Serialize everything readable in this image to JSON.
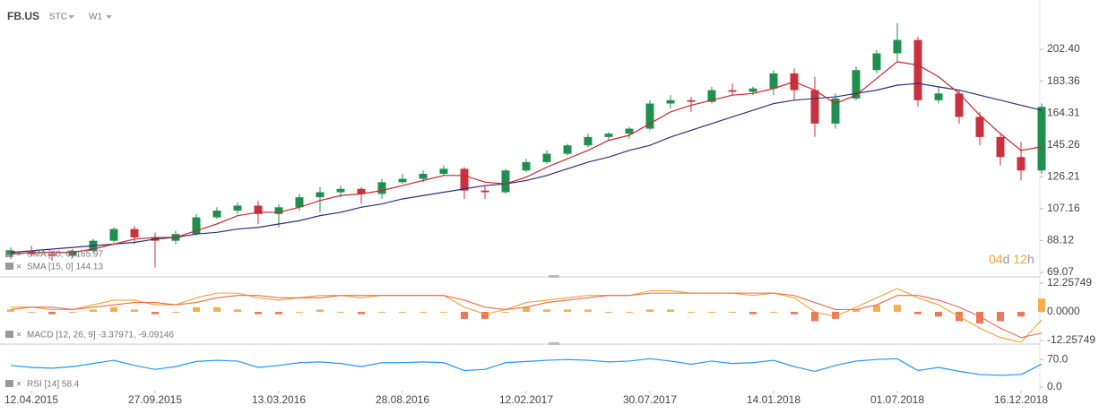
{
  "header": {
    "symbol": "FB.US",
    "instrument_type": "STC",
    "interval": "W1"
  },
  "countdown": [
    {
      "text": "04",
      "color": "#f5a030"
    },
    {
      "text": "d",
      "color": "#9a9a9a"
    },
    {
      "text": "12",
      "color": "#f5a030"
    },
    {
      "text": "h",
      "color": "#9a9a9a"
    }
  ],
  "chart_data": [
    {
      "type": "candlestick",
      "categories": [
        null,
        "12.04.2015",
        null,
        null,
        null,
        null,
        null,
        "27.09.2015",
        null,
        null,
        null,
        null,
        null,
        "13.03.2016",
        null,
        null,
        null,
        null,
        null,
        "28.08.2016",
        null,
        null,
        null,
        null,
        null,
        "12.02.2017",
        null,
        null,
        null,
        null,
        null,
        "30.07.2017",
        null,
        null,
        null,
        null,
        null,
        "14.01.2018",
        null,
        null,
        null,
        null,
        null,
        "01.07.2018",
        null,
        null,
        null,
        null,
        null,
        "16.12.2018",
        null
      ],
      "open": [
        80,
        82,
        80,
        79,
        82,
        88,
        95,
        90,
        88,
        92,
        102,
        106,
        109,
        104,
        108,
        114,
        117,
        119,
        116,
        123,
        125,
        128,
        131,
        118,
        117,
        130,
        135,
        140,
        145,
        150,
        152,
        155,
        170,
        172,
        171,
        178,
        177,
        179,
        188,
        178,
        158,
        173,
        190,
        200,
        208,
        172,
        176,
        162,
        150,
        138,
        130
      ],
      "high": [
        84,
        85,
        82,
        83,
        89,
        96,
        97,
        93,
        94,
        104,
        108,
        111,
        112,
        110,
        116,
        120,
        121,
        120,
        125,
        128,
        130,
        133,
        132,
        121,
        131,
        137,
        142,
        146,
        152,
        153,
        156,
        172,
        175,
        174,
        180,
        182,
        180,
        190,
        191,
        186,
        176,
        192,
        202,
        218,
        210,
        180,
        178,
        165,
        152,
        147,
        170
      ],
      "low": [
        77,
        79,
        76,
        78,
        81,
        87,
        86,
        72,
        86,
        91,
        101,
        104,
        98,
        96,
        106,
        105,
        114,
        110,
        113,
        122,
        123,
        127,
        113,
        113,
        116,
        129,
        134,
        139,
        144,
        148,
        149,
        154,
        167,
        165,
        170,
        175,
        175,
        175,
        172,
        150,
        155,
        172,
        188,
        195,
        168,
        170,
        158,
        145,
        133,
        124,
        128
      ],
      "close": [
        82,
        80,
        79,
        82,
        88,
        95,
        90,
        88,
        92,
        102,
        106,
        109,
        104,
        108,
        114,
        117,
        119,
        116,
        123,
        125,
        128,
        131,
        118,
        117,
        130,
        135,
        140,
        145,
        150,
        152,
        155,
        170,
        172,
        171,
        178,
        177,
        179,
        188,
        178,
        158,
        173,
        190,
        200,
        208,
        172,
        176,
        162,
        150,
        138,
        130,
        168
      ],
      "up_color": "#1f8f4e",
      "down_color": "#c8323c",
      "series": [
        {
          "name": "SMA [40, 0] 165.97",
          "color": "#2a2f7c",
          "values": [
            81,
            82,
            83,
            84,
            85,
            86,
            87,
            89,
            90,
            92,
            93,
            95,
            96,
            98,
            100,
            103,
            105,
            108,
            110,
            113,
            115,
            117,
            119,
            121,
            122,
            124,
            127,
            131,
            135,
            138,
            142,
            145,
            150,
            154,
            158,
            162,
            166,
            170,
            172,
            173,
            174,
            176,
            178,
            181,
            182,
            180,
            178,
            175,
            172,
            169,
            165.97
          ]
        },
        {
          "name": "SMA [15, 0] 144.13",
          "color": "#c6262e",
          "values": [
            80,
            81,
            81,
            81,
            83,
            86,
            89,
            90,
            90,
            94,
            98,
            103,
            105,
            105,
            108,
            112,
            115,
            116,
            118,
            121,
            124,
            127,
            127,
            123,
            122,
            126,
            132,
            137,
            142,
            148,
            151,
            158,
            165,
            169,
            172,
            175,
            176,
            179,
            183,
            178,
            170,
            175,
            185,
            195,
            193,
            186,
            176,
            163,
            152,
            142,
            144.13
          ]
        }
      ],
      "ylim": [
        66.93,
        229.2
      ],
      "yticks": [
        69.07,
        88.12,
        107.16,
        126.21,
        145.26,
        164.31,
        183.36,
        {
          "value": 202.4,
          "label": "202.40"
        }
      ]
    },
    {
      "type": "macd",
      "label": "MACD [12, 26, 9] -3.37971, -9.09146",
      "series": [
        {
          "name": "MACD",
          "color": "#f5a030",
          "values": [
            2,
            2,
            1,
            1,
            3,
            5,
            5,
            3,
            3,
            6,
            8,
            8,
            6,
            5,
            6,
            7,
            7,
            6,
            7,
            7,
            7,
            7,
            2,
            -1,
            1,
            4,
            5,
            6,
            7,
            7,
            7,
            9,
            9,
            8,
            8,
            8,
            7,
            8,
            6,
            0,
            -2,
            2,
            6,
            10,
            6,
            3,
            -2,
            -7,
            -11,
            -13,
            -3.37971
          ]
        },
        {
          "name": "Signal",
          "color": "#ec6a4a",
          "values": [
            1,
            2,
            2,
            1,
            2,
            3,
            4,
            4,
            3,
            4,
            6,
            7,
            7,
            6,
            6,
            6,
            7,
            7,
            7,
            7,
            7,
            7,
            5,
            2,
            1,
            2,
            4,
            5,
            6,
            7,
            7,
            8,
            8,
            8,
            8,
            8,
            8,
            8,
            7,
            4,
            1,
            1,
            3,
            7,
            7,
            5,
            2,
            -2,
            -7,
            -11,
            -9.09146
          ]
        }
      ],
      "histogram": [
        1,
        0,
        -1,
        0,
        1,
        2,
        1,
        -1,
        0,
        2,
        2,
        1,
        -1,
        -1,
        0,
        1,
        0,
        -1,
        0,
        0,
        0,
        0,
        -3,
        -3,
        0,
        2,
        1,
        1,
        1,
        0,
        0,
        1,
        1,
        0,
        0,
        0,
        -1,
        0,
        -1,
        -4,
        -3,
        1,
        3,
        3,
        -1,
        -2,
        -4,
        -5,
        -4,
        -2,
        5.71175
      ],
      "positive_color": "#f5a030",
      "negative_color": "#e8603a",
      "ylim": [
        -13.41,
        14.56
      ],
      "yticks": [
        12.25749,
        {
          "value": 0,
          "label": "0.0000"
        },
        -12.25749
      ]
    },
    {
      "type": "line",
      "series": [
        {
          "name": "RSI [14] 58.4",
          "color": "#2196f3",
          "values": [
            55,
            50,
            48,
            52,
            60,
            68,
            55,
            45,
            52,
            65,
            68,
            66,
            50,
            55,
            62,
            64,
            60,
            52,
            62,
            62,
            64,
            62,
            42,
            45,
            62,
            65,
            68,
            70,
            68,
            64,
            66,
            72,
            66,
            58,
            66,
            60,
            62,
            68,
            52,
            40,
            55,
            66,
            70,
            72,
            42,
            50,
            40,
            32,
            30,
            32,
            58.4
          ]
        }
      ],
      "ylim": [
        0,
        100
      ],
      "yticks": [
        {
          "value": 70,
          "label": "70.0"
        },
        {
          "value": 0,
          "label": "0.0"
        }
      ]
    }
  ]
}
